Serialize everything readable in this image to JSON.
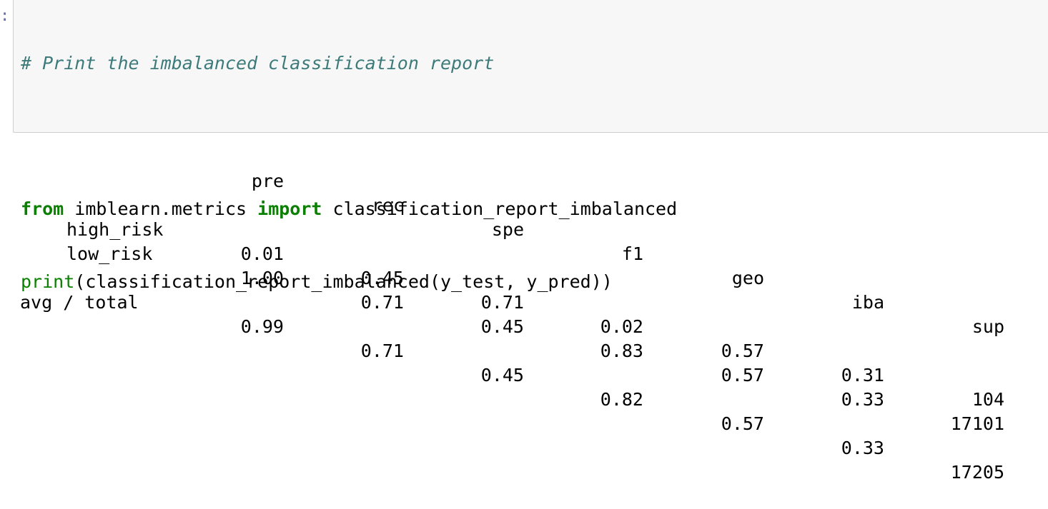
{
  "prompt_marker": ":",
  "code": {
    "comment": "# Print the imbalanced classification report",
    "line2_kw1": "from",
    "line2_mid": " imblearn.metrics ",
    "line2_kw2": "import",
    "line2_end": " classification_report_imbalanced",
    "line3_builtin": "print",
    "line3_rest": "(classification_report_imbalanced(y_test, y_pred))"
  },
  "report": {
    "headers": [
      "pre",
      "rec",
      "spe",
      "f1",
      "geo",
      "iba",
      "sup"
    ],
    "rows": [
      {
        "label": "high_risk",
        "values": [
          "0.01",
          "0.45",
          "0.71",
          "0.02",
          "0.57",
          "0.31",
          "104"
        ]
      },
      {
        "label": "low_risk",
        "values": [
          "1.00",
          "0.71",
          "0.45",
          "0.83",
          "0.57",
          "0.33",
          "17101"
        ]
      }
    ],
    "total": {
      "label": "avg / total",
      "values": [
        "0.99",
        "0.71",
        "0.45",
        "0.82",
        "0.57",
        "0.33",
        "17205"
      ]
    }
  }
}
